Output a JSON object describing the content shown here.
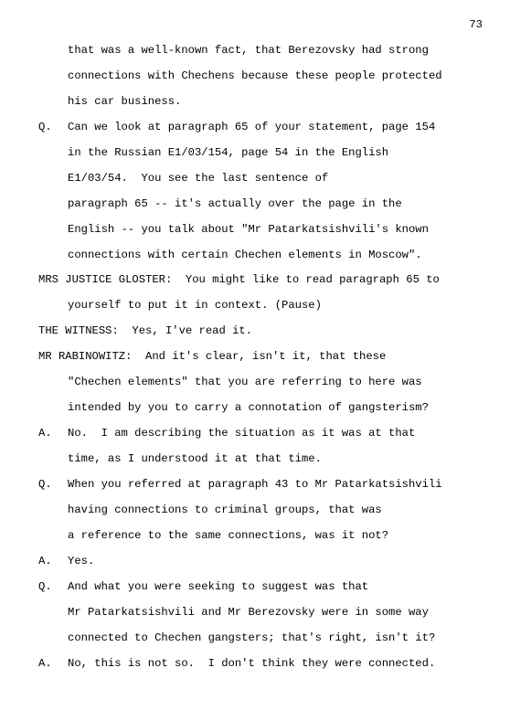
{
  "page_number": "73",
  "lines": [
    {
      "speaker": "",
      "text": "that was a well-known fact, that Berezovsky had strong"
    },
    {
      "speaker": "",
      "text": "connections with Chechens because these people protected"
    },
    {
      "speaker": "",
      "text": "his car business."
    },
    {
      "speaker": "Q.",
      "text": "Can we look at paragraph 65 of your statement, page 154"
    },
    {
      "speaker": "",
      "text": "in the Russian E1/03/154, page 54 in the English"
    },
    {
      "speaker": "",
      "text": "E1/03/54.  You see the last sentence of"
    },
    {
      "speaker": "",
      "text": "paragraph 65 -- it's actually over the page in the"
    },
    {
      "speaker": "",
      "text": "English -- you talk about \"Mr Patarkatsishvili's known"
    },
    {
      "speaker": "",
      "text": "connections with certain Chechen elements in Moscow\"."
    },
    {
      "speaker": "MRS JUSTICE GLOSTER:  You might like to read paragraph 65 to",
      "text": "",
      "full": true
    },
    {
      "speaker": "",
      "text": "yourself to put it in context. (Pause)"
    },
    {
      "speaker": "THE WITNESS:  Yes, I've read it.",
      "text": "",
      "full": true
    },
    {
      "speaker": "MR RABINOWITZ:  And it's clear, isn't it, that these",
      "text": "",
      "full": true
    },
    {
      "speaker": "",
      "text": "\"Chechen elements\" that you are referring to here was"
    },
    {
      "speaker": "",
      "text": "intended by you to carry a connotation of gangsterism?"
    },
    {
      "speaker": "A.",
      "text": "No.  I am describing the situation as it was at that"
    },
    {
      "speaker": "",
      "text": "time, as I understood it at that time."
    },
    {
      "speaker": "Q.",
      "text": "When you referred at paragraph 43 to Mr Patarkatsishvili"
    },
    {
      "speaker": "",
      "text": "having connections to criminal groups, that was"
    },
    {
      "speaker": "",
      "text": "a reference to the same connections, was it not?"
    },
    {
      "speaker": "A.",
      "text": "Yes."
    },
    {
      "speaker": "Q.",
      "text": "And what you were seeking to suggest was that"
    },
    {
      "speaker": "",
      "text": "Mr Patarkatsishvili and Mr Berezovsky were in some way"
    },
    {
      "speaker": "",
      "text": "connected to Chechen gangsters; that's right, isn't it?"
    },
    {
      "speaker": "A.",
      "text": "No, this is not so.  I don't think they were connected."
    }
  ]
}
